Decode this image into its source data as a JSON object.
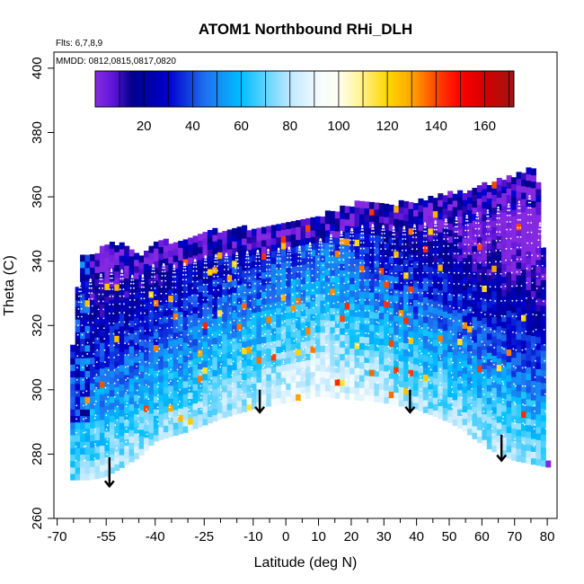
{
  "chart_data": {
    "type": "heatmap",
    "title": "ATOM1 Northbound RHi_DLH",
    "notes": [
      "Flts: 6,7,8,9",
      "MMDD: 0812,0815,0817,0820"
    ],
    "xlabel": "Latitude (deg N)",
    "ylabel": "Theta (C)",
    "xlim": [
      -71,
      83
    ],
    "ylim": [
      260,
      405
    ],
    "x_ticks": [
      -70,
      -55,
      -40,
      -25,
      -10,
      0,
      10,
      20,
      30,
      40,
      50,
      60,
      70,
      80
    ],
    "x_minor_ticks": [
      -65,
      -60,
      -50,
      -45,
      -35,
      -30,
      -20,
      -15,
      -5,
      5,
      15,
      25,
      35,
      45,
      55,
      65,
      75
    ],
    "y_ticks": [
      260,
      280,
      300,
      320,
      340,
      360,
      380,
      400
    ],
    "colorbar": {
      "range": [
        0,
        172
      ],
      "ticks": [
        20,
        40,
        60,
        80,
        100,
        120,
        140,
        160
      ],
      "divisions": [
        10,
        20,
        30,
        40,
        50,
        60,
        70,
        80,
        90,
        100,
        110,
        120,
        130,
        140,
        150,
        160,
        170
      ],
      "stops": [
        {
          "v": 0,
          "c": "#8a2be2"
        },
        {
          "v": 8,
          "c": "#5a14d8"
        },
        {
          "v": 15,
          "c": "#00008b"
        },
        {
          "v": 30,
          "c": "#0000cd"
        },
        {
          "v": 45,
          "c": "#1e6ff0"
        },
        {
          "v": 60,
          "c": "#00bfff"
        },
        {
          "v": 80,
          "c": "#bfe8ff"
        },
        {
          "v": 92,
          "c": "#f5fbff"
        },
        {
          "v": 100,
          "c": "#fffff0"
        },
        {
          "v": 108,
          "c": "#fff59d"
        },
        {
          "v": 120,
          "c": "#ffd700"
        },
        {
          "v": 130,
          "c": "#ffa500"
        },
        {
          "v": 140,
          "c": "#ff4500"
        },
        {
          "v": 150,
          "c": "#ff0000"
        },
        {
          "v": 160,
          "c": "#d40000"
        },
        {
          "v": 172,
          "c": "#a01515"
        }
      ]
    },
    "upper_boundary": [
      [
        -66,
        305
      ],
      [
        -63,
        340
      ],
      [
        -60,
        341
      ],
      [
        -52,
        345
      ],
      [
        -45,
        341
      ],
      [
        -40,
        346
      ],
      [
        -33,
        345
      ],
      [
        -25,
        348
      ],
      [
        -15,
        349
      ],
      [
        -5,
        350
      ],
      [
        5,
        351
      ],
      [
        15,
        355
      ],
      [
        25,
        358
      ],
      [
        35,
        357
      ],
      [
        45,
        359
      ],
      [
        55,
        361
      ],
      [
        62,
        363
      ],
      [
        68,
        365
      ],
      [
        72,
        366
      ],
      [
        75,
        368
      ],
      [
        77,
        367
      ],
      [
        78,
        357
      ],
      [
        79,
        340
      ],
      [
        80,
        300
      ],
      [
        80,
        277
      ]
    ],
    "lower_boundary": [
      [
        -66,
        272
      ],
      [
        -60,
        272
      ],
      [
        -55,
        273
      ],
      [
        -50,
        276
      ],
      [
        -45,
        279
      ],
      [
        -40,
        284
      ],
      [
        -30,
        287
      ],
      [
        -20,
        291
      ],
      [
        -10,
        294
      ],
      [
        0,
        296
      ],
      [
        10,
        298
      ],
      [
        20,
        297
      ],
      [
        30,
        296
      ],
      [
        40,
        294
      ],
      [
        50,
        290
      ],
      [
        55,
        287
      ],
      [
        60,
        283
      ],
      [
        65,
        280
      ],
      [
        70,
        278
      ],
      [
        75,
        277
      ],
      [
        80,
        276
      ]
    ],
    "arrows": [
      {
        "lat": -54,
        "theta_top": 279,
        "theta_tip": 270
      },
      {
        "lat": -8,
        "theta_top": 300,
        "theta_tip": 293
      },
      {
        "lat": 38,
        "theta_top": 300,
        "theta_tip": 293
      },
      {
        "lat": 66,
        "theta_top": 286,
        "theta_tip": 278
      }
    ]
  }
}
